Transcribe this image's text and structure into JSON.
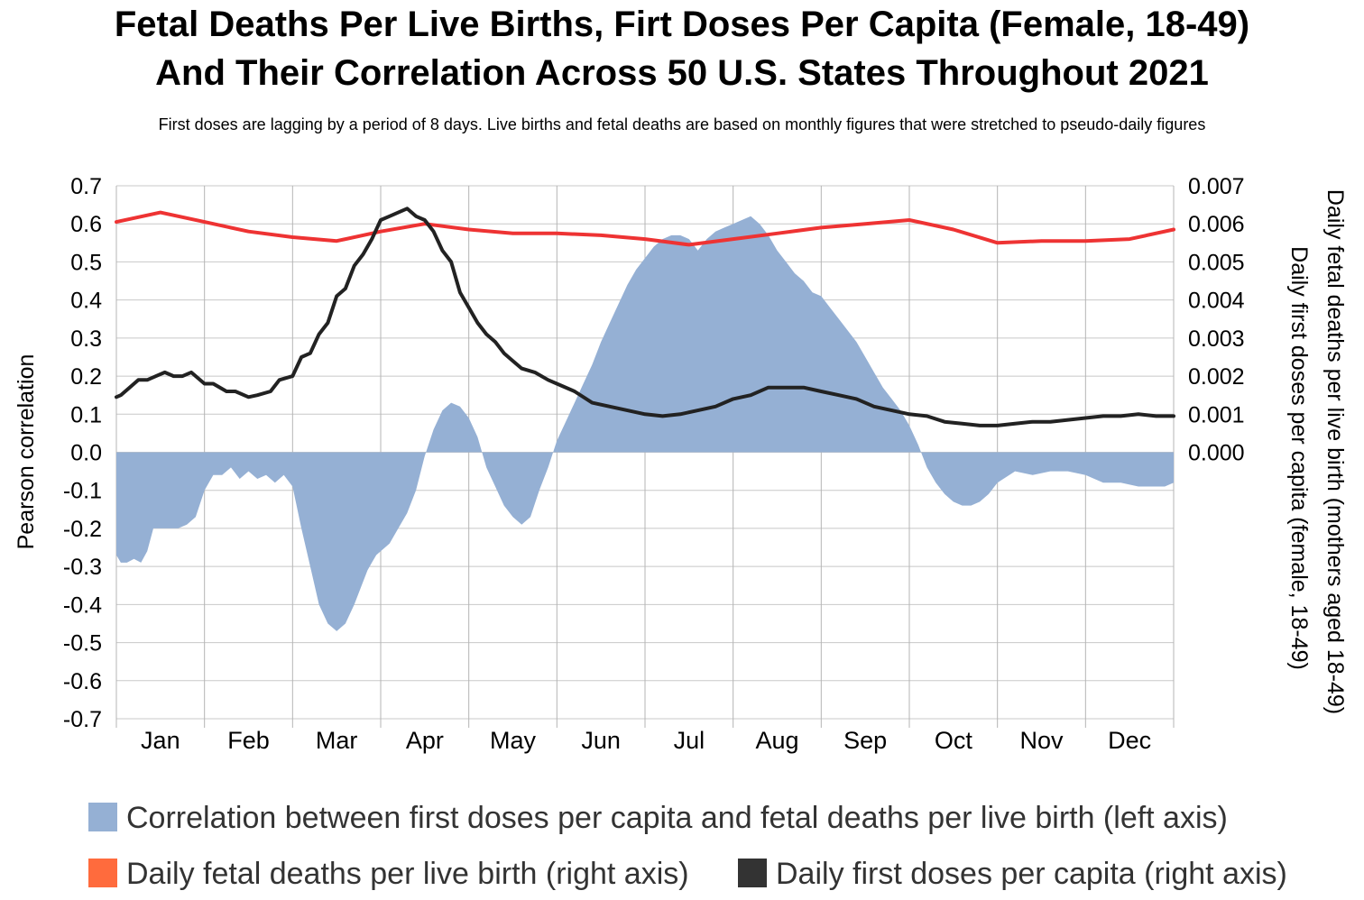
{
  "chart_data": {
    "type": "area",
    "title": "Fetal Deaths Per Live Births, Firt Doses Per Capita (Female, 18-49)",
    "title_line2": "And Their Correlation Across 50 U.S. States Throughout 2021",
    "subtitle": "First doses are lagging by a period of 8 days. Live births and fetal deaths are based on monthly figures that were stretched to pseudo-daily figures",
    "ylabel_left": "Pearson correlation",
    "ylabel_right_1": "Daily fetal deaths per live birth (mothers aged 18-49)",
    "ylabel_right_2": "Daily first doses per capita (female, 18-49)",
    "left_ylim": [
      -0.7,
      0.7
    ],
    "right_ylim": [
      -0.007,
      0.007
    ],
    "left_ticks": [
      "0.7",
      "0.6",
      "0.5",
      "0.4",
      "0.3",
      "0.2",
      "0.1",
      "0.0",
      "-0.1",
      "-0.2",
      "-0.3",
      "-0.4",
      "-0.5",
      "-0.6",
      "-0.7"
    ],
    "right_ticks": [
      "0.007",
      "0.006",
      "0.005",
      "0.004",
      "0.003",
      "0.002",
      "0.001",
      "0.000"
    ],
    "months": [
      "Jan",
      "Feb",
      "Mar",
      "Apr",
      "May",
      "Jun",
      "Jul",
      "Aug",
      "Sep",
      "Oct",
      "Nov",
      "Dec"
    ],
    "grid": "vertical month lines, horizontal lines at each tick",
    "series": [
      {
        "name": "Correlation between first doses per capita and fetal deaths per live birth (left axis)",
        "axis": "left",
        "kind": "area",
        "color": "#95b0d4",
        "x_month": [
          0,
          0.05,
          0.12,
          0.2,
          0.28,
          0.35,
          0.42,
          0.5,
          0.6,
          0.7,
          0.8,
          0.9,
          1.0,
          1.1,
          1.2,
          1.3,
          1.4,
          1.5,
          1.6,
          1.7,
          1.8,
          1.9,
          2.0,
          2.1,
          2.2,
          2.3,
          2.4,
          2.5,
          2.6,
          2.7,
          2.8,
          2.85,
          2.9,
          2.95,
          3.0,
          3.1,
          3.2,
          3.3,
          3.4,
          3.5,
          3.6,
          3.7,
          3.8,
          3.9,
          4.0,
          4.1,
          4.2,
          4.3,
          4.4,
          4.5,
          4.6,
          4.7,
          4.8,
          4.9,
          5.0,
          5.1,
          5.2,
          5.3,
          5.4,
          5.5,
          5.6,
          5.7,
          5.8,
          5.9,
          6.0,
          6.1,
          6.2,
          6.3,
          6.4,
          6.5,
          6.6,
          6.7,
          6.8,
          6.9,
          7.0,
          7.1,
          7.2,
          7.3,
          7.4,
          7.5,
          7.6,
          7.7,
          7.8,
          7.9,
          8.0,
          8.1,
          8.2,
          8.3,
          8.4,
          8.5,
          8.6,
          8.7,
          8.8,
          8.9,
          9.0,
          9.1,
          9.2,
          9.3,
          9.4,
          9.5,
          9.6,
          9.7,
          9.8,
          9.9,
          10.0,
          10.2,
          10.4,
          10.6,
          10.8,
          11.0,
          11.2,
          11.4,
          11.6,
          11.8,
          11.9,
          12.0
        ],
        "values": [
          -0.27,
          -0.29,
          -0.29,
          -0.28,
          -0.29,
          -0.26,
          -0.2,
          -0.2,
          -0.2,
          -0.2,
          -0.19,
          -0.17,
          -0.1,
          -0.06,
          -0.06,
          -0.04,
          -0.07,
          -0.05,
          -0.07,
          -0.06,
          -0.08,
          -0.06,
          -0.09,
          -0.2,
          -0.3,
          -0.4,
          -0.45,
          -0.47,
          -0.45,
          -0.4,
          -0.34,
          -0.31,
          -0.29,
          -0.27,
          -0.26,
          -0.24,
          -0.2,
          -0.16,
          -0.1,
          -0.01,
          0.06,
          0.11,
          0.13,
          0.12,
          0.09,
          0.04,
          -0.04,
          -0.09,
          -0.14,
          -0.17,
          -0.19,
          -0.17,
          -0.1,
          -0.04,
          0.03,
          0.08,
          0.13,
          0.18,
          0.23,
          0.29,
          0.34,
          0.39,
          0.44,
          0.48,
          0.51,
          0.54,
          0.56,
          0.57,
          0.57,
          0.56,
          0.53,
          0.56,
          0.58,
          0.59,
          0.6,
          0.61,
          0.62,
          0.6,
          0.57,
          0.53,
          0.5,
          0.47,
          0.45,
          0.42,
          0.41,
          0.38,
          0.35,
          0.32,
          0.29,
          0.25,
          0.21,
          0.17,
          0.14,
          0.11,
          0.07,
          0.02,
          -0.04,
          -0.08,
          -0.11,
          -0.13,
          -0.14,
          -0.14,
          -0.13,
          -0.11,
          -0.08,
          -0.05,
          -0.06,
          -0.05,
          -0.05,
          -0.06,
          -0.08,
          -0.08,
          -0.09,
          -0.09,
          -0.09,
          -0.08
        ]
      },
      {
        "name": "Daily fetal deaths per live birth (right axis)",
        "axis": "right",
        "kind": "line",
        "color": "#ee3333",
        "x_month": [
          0,
          0.5,
          1.0,
          1.5,
          2.0,
          2.5,
          3.0,
          3.5,
          4.0,
          4.5,
          5.0,
          5.5,
          6.0,
          6.5,
          7.0,
          7.5,
          8.0,
          8.5,
          9.0,
          9.5,
          10.0,
          10.5,
          11.0,
          11.5,
          12.0
        ],
        "values": [
          0.00605,
          0.0063,
          0.00605,
          0.0058,
          0.00565,
          0.00555,
          0.0058,
          0.006,
          0.00585,
          0.00575,
          0.00575,
          0.0057,
          0.0056,
          0.00545,
          0.0056,
          0.00575,
          0.0059,
          0.006,
          0.0061,
          0.00585,
          0.0055,
          0.00555,
          0.00555,
          0.0056,
          0.00585
        ]
      },
      {
        "name": "Daily first doses per capita (right axis)",
        "axis": "right",
        "kind": "line",
        "color": "#222222",
        "x_month": [
          0,
          0.05,
          0.15,
          0.25,
          0.35,
          0.45,
          0.55,
          0.65,
          0.75,
          0.85,
          1.0,
          1.1,
          1.25,
          1.35,
          1.5,
          1.6,
          1.75,
          1.85,
          2.0,
          2.1,
          2.2,
          2.3,
          2.4,
          2.5,
          2.6,
          2.7,
          2.8,
          2.9,
          3.0,
          3.1,
          3.2,
          3.3,
          3.4,
          3.5,
          3.6,
          3.7,
          3.8,
          3.9,
          4.0,
          4.1,
          4.2,
          4.3,
          4.4,
          4.5,
          4.6,
          4.75,
          4.9,
          5.0,
          5.2,
          5.4,
          5.6,
          5.8,
          6.0,
          6.2,
          6.4,
          6.6,
          6.8,
          7.0,
          7.2,
          7.4,
          7.6,
          7.8,
          8.0,
          8.2,
          8.4,
          8.6,
          8.8,
          9.0,
          9.2,
          9.4,
          9.6,
          9.8,
          10.0,
          10.2,
          10.4,
          10.6,
          10.8,
          11.0,
          11.2,
          11.4,
          11.6,
          11.8,
          11.9,
          12.0
        ],
        "values": [
          0.00145,
          0.0015,
          0.0017,
          0.0019,
          0.0019,
          0.002,
          0.0021,
          0.002,
          0.002,
          0.0021,
          0.0018,
          0.0018,
          0.0016,
          0.0016,
          0.00145,
          0.0015,
          0.0016,
          0.0019,
          0.002,
          0.0025,
          0.0026,
          0.0031,
          0.0034,
          0.0041,
          0.0043,
          0.0049,
          0.0052,
          0.0056,
          0.0061,
          0.0062,
          0.0063,
          0.0064,
          0.0062,
          0.0061,
          0.0058,
          0.0053,
          0.005,
          0.0042,
          0.0038,
          0.0034,
          0.0031,
          0.0029,
          0.0026,
          0.0024,
          0.0022,
          0.0021,
          0.0019,
          0.0018,
          0.0016,
          0.0013,
          0.0012,
          0.0011,
          0.001,
          0.00095,
          0.001,
          0.0011,
          0.0012,
          0.0014,
          0.0015,
          0.0017,
          0.0017,
          0.0017,
          0.0016,
          0.0015,
          0.0014,
          0.0012,
          0.0011,
          0.001,
          0.00095,
          0.0008,
          0.00075,
          0.0007,
          0.0007,
          0.00075,
          0.0008,
          0.0008,
          0.00085,
          0.0009,
          0.00095,
          0.00095,
          0.001,
          0.00095,
          0.00095,
          0.00095
        ]
      }
    ]
  },
  "legend": {
    "item1": "Correlation between first doses per capita and fetal deaths per live birth (left axis)",
    "item2": "Daily fetal deaths per live birth (right axis)",
    "item3": "Daily first doses per capita (right axis)",
    "color1": "#95b0d4",
    "color2": "#ff6b3d",
    "color3": "#333333"
  }
}
